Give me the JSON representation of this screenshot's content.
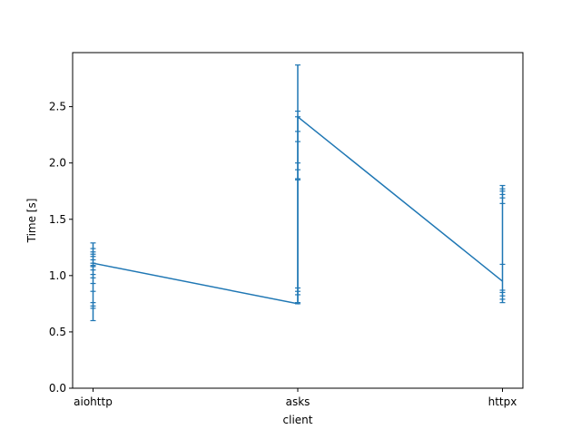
{
  "chart_data": {
    "type": "line",
    "title": "",
    "xlabel": "client",
    "ylabel": "Time [s]",
    "categories": [
      "aiohttp",
      "asks",
      "httpx"
    ],
    "ylim": [
      0.0,
      2.98
    ],
    "yticks": [
      0.0,
      0.5,
      1.0,
      1.5,
      2.0,
      2.5
    ],
    "ytick_labels": [
      "0.0",
      "0.5",
      "1.0",
      "1.5",
      "2.0",
      "2.5"
    ],
    "grid": false,
    "legend": "none",
    "color": "#1f77b4",
    "series": [
      {
        "points": [
          {
            "x": "aiohttp",
            "y": 1.11
          },
          {
            "x": "asks",
            "y": 0.75
          },
          {
            "x": "asks",
            "y": 2.41
          },
          {
            "x": "httpx",
            "y": 0.95
          }
        ]
      }
    ],
    "errorbars": [
      {
        "x": "aiohttp",
        "low": 0.6,
        "high": 1.29,
        "caps": [
          0.6,
          0.71,
          0.73,
          0.76,
          0.86,
          0.93,
          0.98,
          1.01,
          1.05,
          1.08,
          1.09,
          1.11,
          1.14,
          1.17,
          1.19,
          1.21,
          1.24,
          1.29
        ]
      },
      {
        "x": "asks",
        "low": 0.75,
        "high": 2.87,
        "caps": [
          0.75,
          0.76,
          0.83,
          0.86,
          0.89,
          1.85,
          1.86,
          1.94,
          2.0,
          2.19,
          2.28,
          2.41,
          2.46,
          2.87
        ]
      },
      {
        "x": "httpx",
        "low": 0.76,
        "high": 1.8,
        "caps": [
          0.76,
          0.79,
          0.82,
          0.85,
          0.87,
          1.1,
          1.64,
          1.69,
          1.72,
          1.75,
          1.77,
          1.8
        ]
      }
    ]
  }
}
